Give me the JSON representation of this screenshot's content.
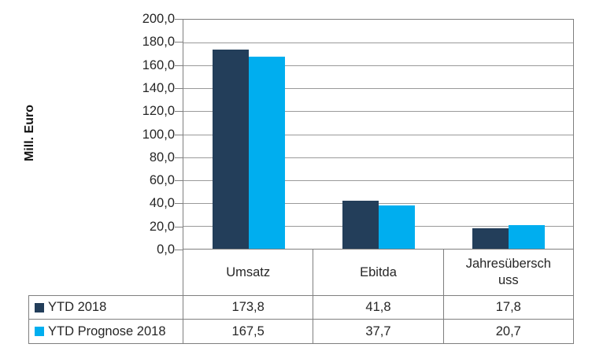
{
  "chart_data": {
    "type": "bar",
    "title": "",
    "xlabel": "",
    "ylabel": "Mill. Euro",
    "categories": [
      "Umsatz",
      "Ebitda",
      "Jahresübersch\nuss"
    ],
    "series": [
      {
        "name": "YTD 2018",
        "color": "#233e5a",
        "values": [
          173.8,
          41.8,
          17.8
        ],
        "values_display": [
          "173,8",
          "41,8",
          "17,8"
        ]
      },
      {
        "name": "YTD Prognose 2018",
        "color": "#00aeef",
        "values": [
          167.5,
          37.7,
          20.7
        ],
        "values_display": [
          "167,5",
          "37,7",
          "20,7"
        ]
      }
    ],
    "ylim": [
      0,
      200
    ],
    "y_step": 20,
    "y_tick_labels": [
      "200,0",
      "180,0",
      "160,0",
      "140,0",
      "120,0",
      "100,0",
      "80,0",
      "60,0",
      "40,0",
      "20,0",
      "0,0"
    ],
    "grid": true,
    "legend_position": "data-table-left"
  },
  "colors": {
    "grid": "#9a9a9a",
    "border": "#7f7f7f",
    "series1": "#233e5a",
    "series2": "#00aeef"
  }
}
